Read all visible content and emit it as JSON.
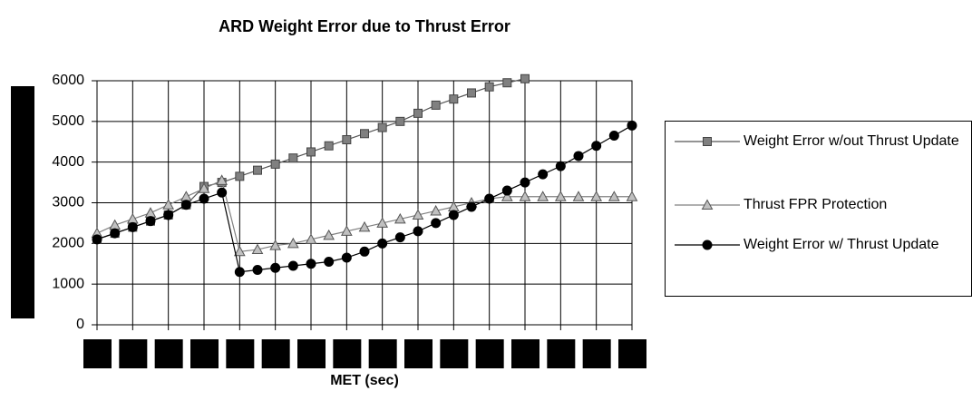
{
  "chart_data": {
    "type": "line",
    "title": "ARD Weight Error due to Thrust Error",
    "x_label": "MET (sec)",
    "categories": [
      null,
      null,
      null,
      null,
      null,
      null,
      null,
      null,
      null,
      null,
      null,
      null,
      null,
      null,
      null,
      null,
      null,
      null,
      null,
      null,
      null,
      null,
      null,
      null,
      null,
      null,
      null,
      null,
      null,
      null,
      null
    ],
    "series": [
      {
        "name": "Weight Error w/out Thrust Update",
        "color": "#808080",
        "marker": "square",
        "values": [
          2100,
          2250,
          2400,
          2550,
          2700,
          2950,
          3400,
          3500,
          3650,
          3800,
          3950,
          4100,
          4250,
          4400,
          4550,
          4700,
          4850,
          5000,
          5200,
          5400,
          5550,
          5700,
          5850,
          5950,
          6050,
          null,
          null,
          null,
          null,
          null,
          null
        ]
      },
      {
        "name": "Thrust FPR Protection",
        "color": "#c0c0c0",
        "marker": "triangle",
        "values": [
          2250,
          2450,
          2600,
          2750,
          2950,
          3150,
          3350,
          3550,
          1800,
          1850,
          1950,
          2000,
          2100,
          2200,
          2300,
          2400,
          2500,
          2600,
          2700,
          2800,
          2900,
          3000,
          3100,
          3150,
          3150,
          3150,
          3150,
          3150,
          3150,
          3150,
          3150
        ]
      },
      {
        "name": "Weight Error w/ Thrust Update",
        "color": "#000000",
        "marker": "circle",
        "values": [
          2100,
          2250,
          2400,
          2550,
          2700,
          2950,
          3100,
          3250,
          1300,
          1350,
          1400,
          1450,
          1500,
          1550,
          1650,
          1800,
          2000,
          2150,
          2300,
          2500,
          2700,
          2900,
          3100,
          3300,
          3500,
          3700,
          3900,
          4150,
          4400,
          4650,
          4900
        ]
      }
    ],
    "ylim": [
      0,
      6000
    ],
    "yticks": [
      0,
      1000,
      2000,
      3000,
      4000,
      5000,
      6000
    ],
    "grid": true,
    "legend": "right"
  }
}
